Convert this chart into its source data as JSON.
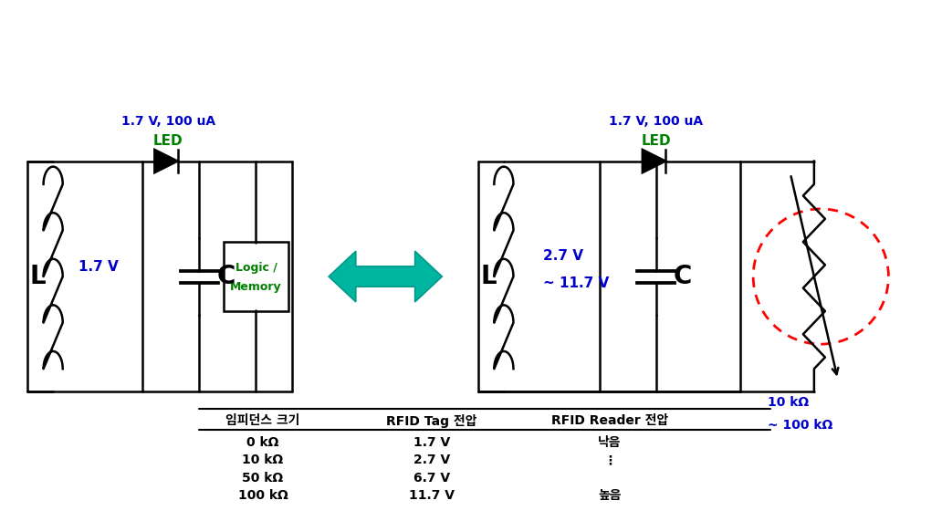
{
  "fig_width": 10.93,
  "fig_height": 5.35,
  "bg_color": "#ffffff",
  "blue_color": "#0000CD",
  "green_color": "#008000",
  "red_color": "#FF0000",
  "black_color": "#000000",
  "arrow_color": "#00BBAA",
  "table_header": [
    "임피던스 크기",
    "RFID Tag 전압",
    "RFID Reader 전압"
  ],
  "table_rows": [
    [
      "0 kΩ",
      "1.7 V",
      "낙음"
    ],
    [
      "10 kΩ",
      "2.7 V",
      "⋮"
    ],
    [
      "50 kΩ",
      "6.7 V",
      ""
    ],
    [
      "100 kΩ",
      "11.7 V",
      "높음"
    ]
  ],
  "left_label_voltage": "1.7 V",
  "led_label": "LED",
  "led_specs": "1.7 V, 100 uA",
  "logic_line1": "Logic /",
  "logic_line2": "Memory",
  "right_voltage1": "2.7 V",
  "right_voltage2": "~ 11.7 V",
  "resistor_label1": "10 kΩ",
  "resistor_label2": "~ 100 kΩ"
}
